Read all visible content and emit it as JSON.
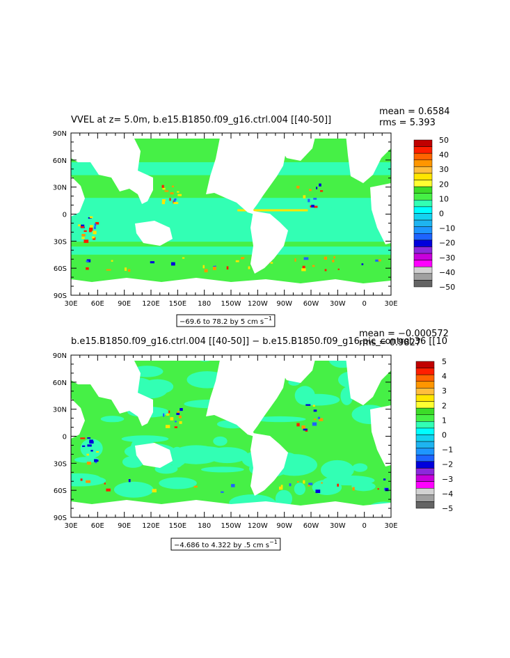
{
  "chart_data": [
    {
      "type": "heatmap",
      "title": "VVEL at z=    5.0m, b.e15.B1850.f09_g16.ctrl.004 [[40-50]]",
      "stats": {
        "mean": "mean = 0.6584",
        "rms": "rms = 5.393"
      },
      "range_note": "−69.6 to 78.2 by 5 cm s",
      "range_unit_sup": "−1",
      "x_ticks": [
        "30E",
        "60E",
        "90E",
        "120E",
        "150E",
        "180",
        "150W",
        "120W",
        "90W",
        "60W",
        "30W",
        "0",
        "30E"
      ],
      "y_ticks": [
        "90N",
        "60N",
        "30N",
        "0",
        "30S",
        "60S",
        "90S"
      ],
      "colorbar": {
        "labels": [
          "50",
          "40",
          "30",
          "20",
          "10",
          "0",
          "−10",
          "−20",
          "−30",
          "−40",
          "−50"
        ],
        "colors": [
          "#c00000",
          "#ff1e00",
          "#ff6400",
          "#ff9600",
          "#ffbe3c",
          "#ffe600",
          "#ffff32",
          "#3cdc28",
          "#46f046",
          "#32ffb4",
          "#00ffff",
          "#14d2f0",
          "#1eb4f0",
          "#1e96ff",
          "#1e64ff",
          "#0000dc",
          "#8c28dc",
          "#c800dc",
          "#ff00ff",
          "#d2d2d2",
          "#a0a0a0",
          "#646464"
        ]
      }
    },
    {
      "type": "heatmap",
      "title": "b.e15.B1850.f09_g16.ctrl.004 [[40-50]] − b.e15.B1850.f09_g16.pic_control.36 [[10",
      "stats": {
        "mean": "mean = −0.000572",
        "rms": "rms = 0.9827"
      },
      "range_note": "−4.686 to 4.322 by .5 cm s",
      "range_unit_sup": "−1",
      "x_ticks": [
        "30E",
        "60E",
        "90E",
        "120E",
        "150E",
        "180",
        "150W",
        "120W",
        "90W",
        "60W",
        "30W",
        "0",
        "30E"
      ],
      "y_ticks": [
        "90N",
        "60N",
        "30N",
        "0",
        "30S",
        "60S",
        "90S"
      ],
      "colorbar": {
        "labels": [
          "5",
          "4",
          "3",
          "2",
          "1",
          "0",
          "−1",
          "−2",
          "−3",
          "−4",
          "−5"
        ],
        "colors": [
          "#c00000",
          "#ff1e00",
          "#ff6400",
          "#ff9600",
          "#ffbe3c",
          "#ffe600",
          "#ffff32",
          "#3cdc28",
          "#46f046",
          "#32ffb4",
          "#00ffff",
          "#14d2f0",
          "#1eb4f0",
          "#1e96ff",
          "#1e64ff",
          "#0000dc",
          "#8c28dc",
          "#c800dc",
          "#ff00ff",
          "#d2d2d2",
          "#a0a0a0",
          "#646464"
        ]
      }
    }
  ],
  "colors": {
    "green": "#46f046",
    "cyan": "#32ffb4",
    "land": "#ffffff"
  }
}
